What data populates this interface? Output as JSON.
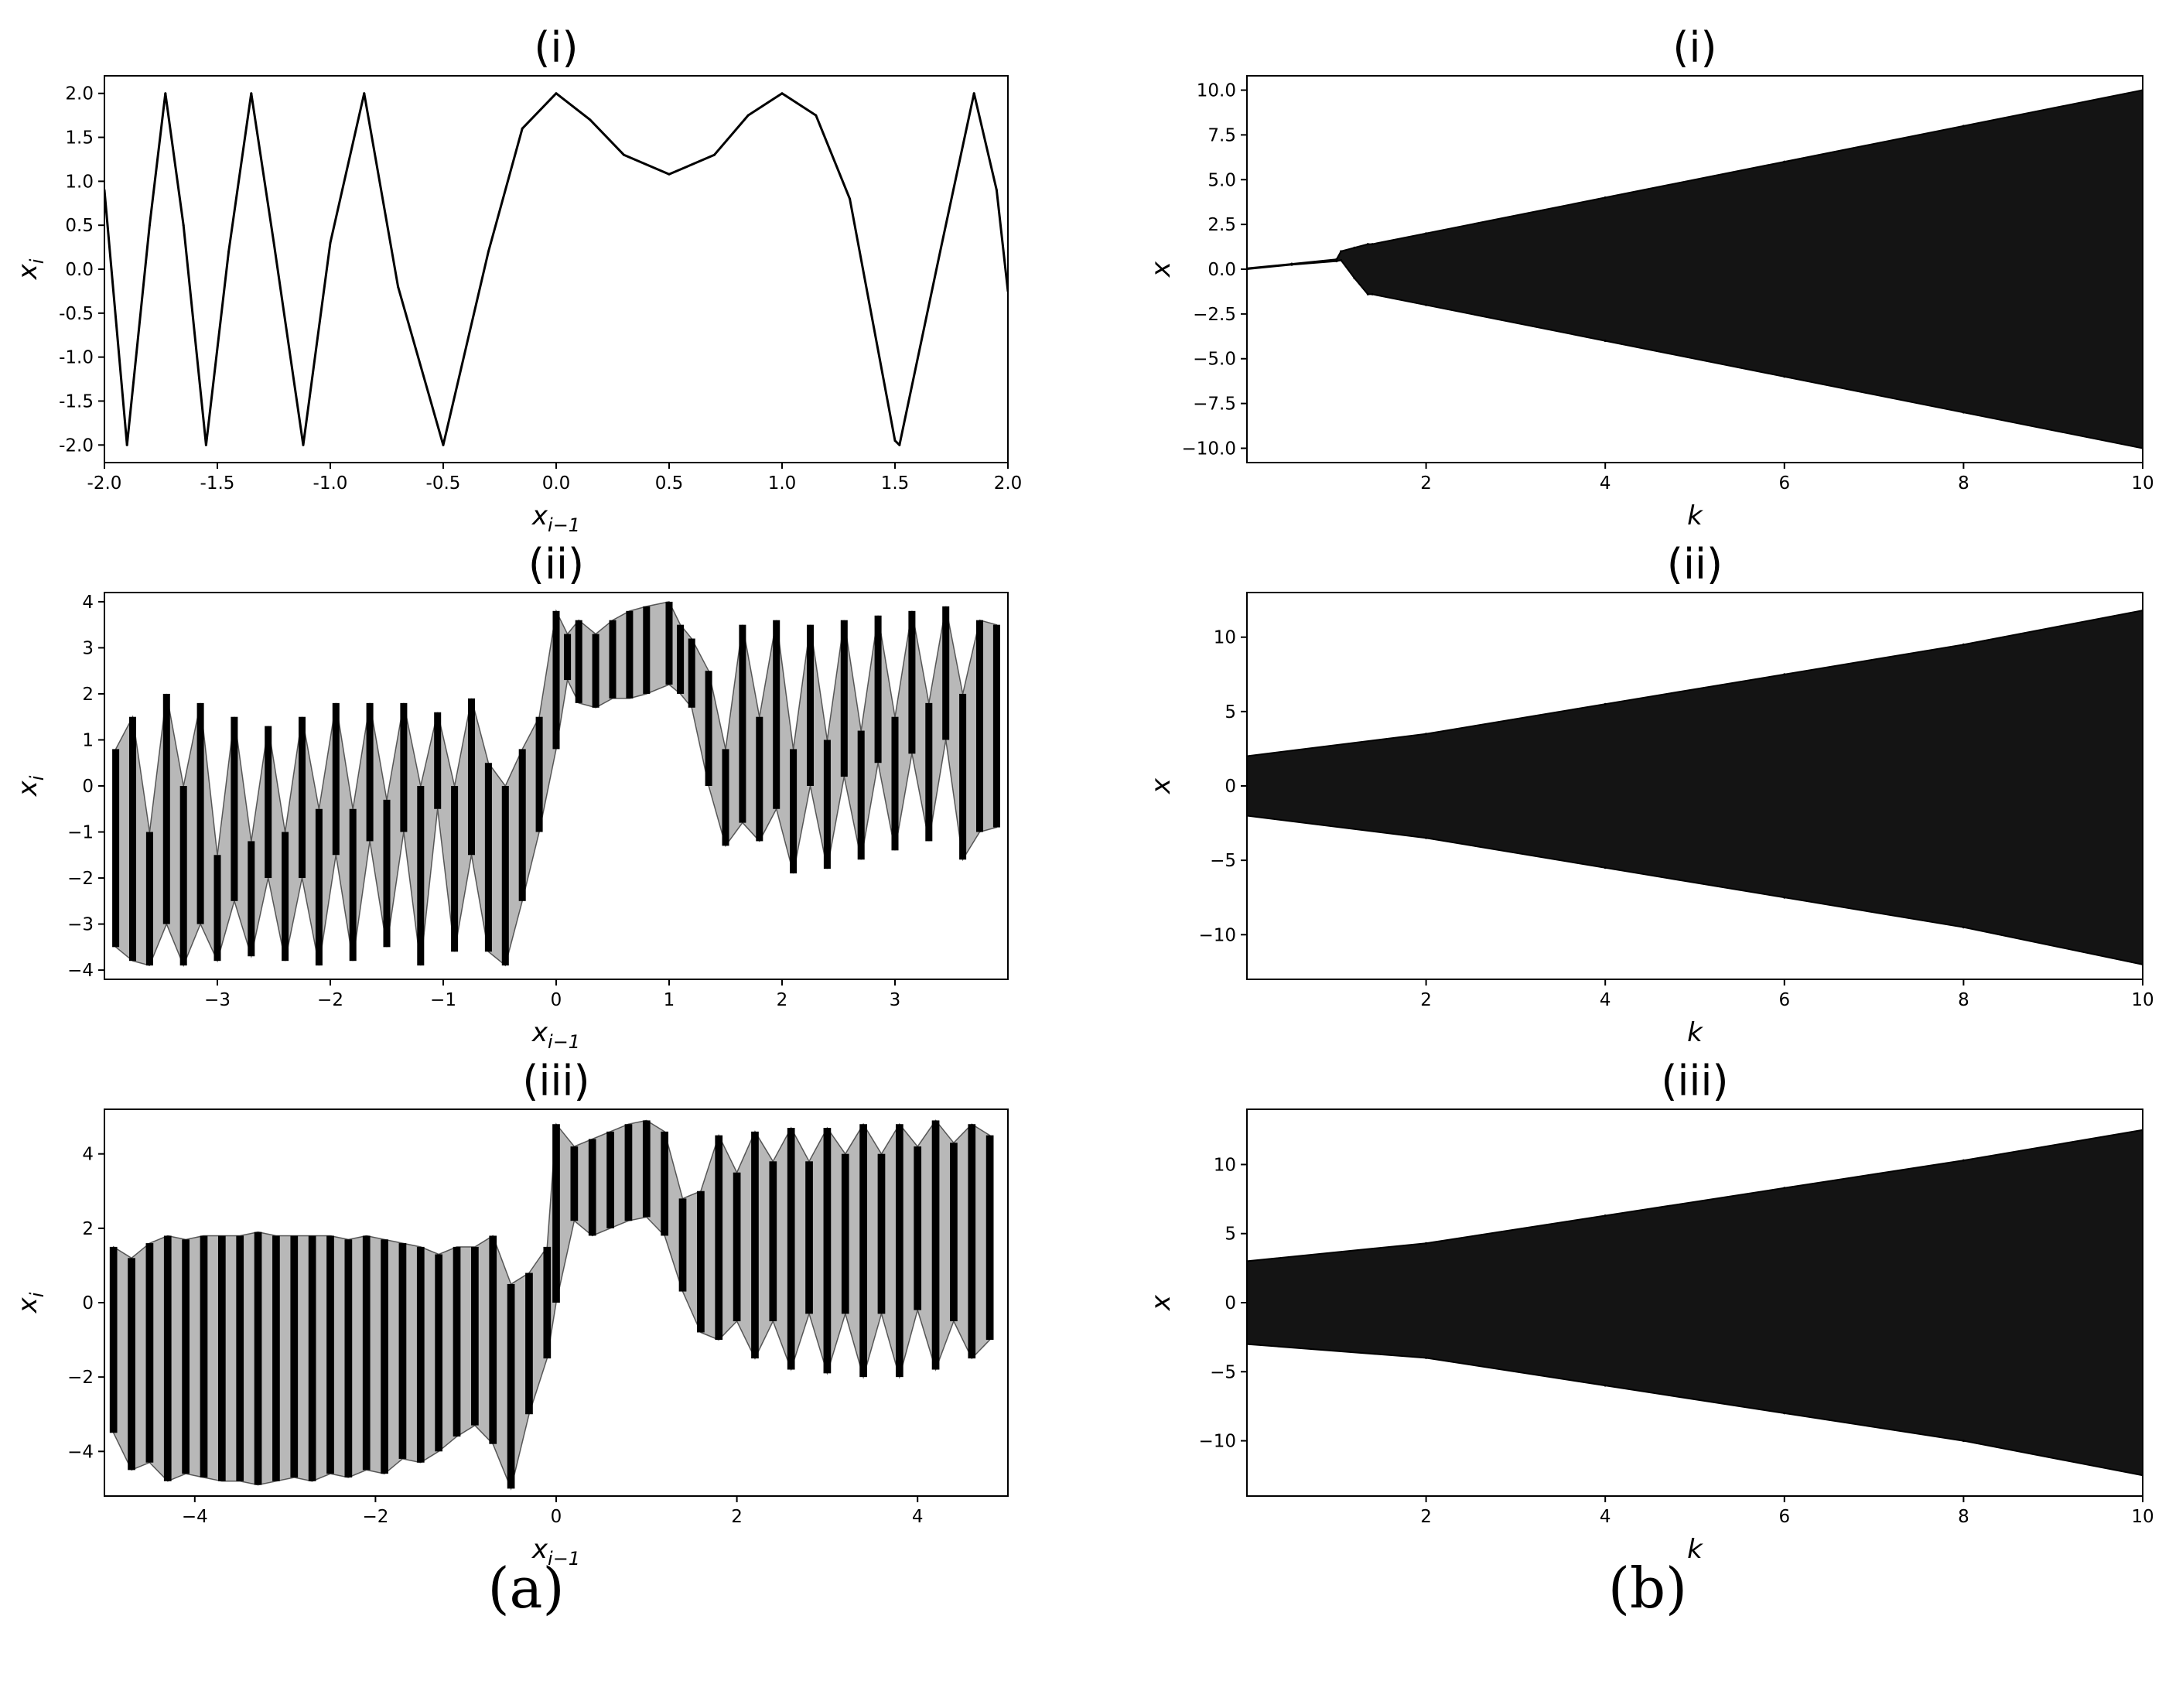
{
  "figure": {
    "panel_a_label": "(a)",
    "panel_b_label": "(b)"
  },
  "chart_data": [
    {
      "id": "a1",
      "type": "line",
      "title": "(i)",
      "xlabel": "x_{i-1}",
      "ylabel": "x_i",
      "xlim": [
        -2.0,
        2.0
      ],
      "ylim": [
        -2.2,
        2.2
      ],
      "xticks": [
        "-2.0",
        "-1.5",
        "-1.0",
        "-0.5",
        "0.0",
        "0.5",
        "1.0",
        "1.5",
        "2.0"
      ],
      "yticks": [
        "-2.0",
        "-1.5",
        "-1.0",
        "-0.5",
        "0.0",
        "0.5",
        "1.0",
        "1.5",
        "2.0"
      ],
      "color": "#000000",
      "x": [
        -2.0,
        -1.9,
        -1.8,
        -1.73,
        -1.65,
        -1.55,
        -1.45,
        -1.35,
        -1.25,
        -1.12,
        -1.0,
        -0.85,
        -0.7,
        -0.5,
        -0.3,
        -0.15,
        0.0,
        0.15,
        0.3,
        0.5,
        0.7,
        0.85,
        1.0,
        1.15,
        1.3,
        1.5,
        1.52,
        1.7,
        1.85,
        1.95,
        2.0
      ],
      "y": [
        0.9,
        -2.0,
        0.5,
        2.0,
        0.5,
        -2.0,
        0.2,
        2.0,
        0.3,
        -2.0,
        0.3,
        2.0,
        -0.2,
        -2.0,
        0.2,
        1.6,
        2.0,
        1.7,
        1.3,
        1.08,
        1.3,
        1.75,
        2.0,
        1.75,
        0.8,
        -1.95,
        -2.0,
        0.2,
        2.0,
        0.9,
        -0.25
      ]
    },
    {
      "id": "a2",
      "type": "scatter",
      "title": "(ii)",
      "xlabel": "x_{i-1}",
      "ylabel": "x_i",
      "xlim": [
        -4.0,
        4.0
      ],
      "ylim": [
        -4.2,
        4.2
      ],
      "xticks": [
        "−3",
        "−2",
        "−1",
        "0",
        "1",
        "2",
        "3"
      ],
      "yticks": [
        "−4",
        "−3",
        "−2",
        "−1",
        "0",
        "1",
        "2",
        "3",
        "4"
      ],
      "color": "#000000",
      "x": [
        -3.9,
        -3.75,
        -3.6,
        -3.45,
        -3.3,
        -3.15,
        -3.0,
        -2.85,
        -2.7,
        -2.55,
        -2.4,
        -2.25,
        -2.1,
        -1.95,
        -1.8,
        -1.65,
        -1.5,
        -1.35,
        -1.2,
        -1.05,
        -0.9,
        -0.75,
        -0.6,
        -0.45,
        -0.3,
        -0.15,
        0.0,
        0.1,
        0.2,
        0.35,
        0.5,
        0.65,
        0.8,
        1.0,
        1.1,
        1.2,
        1.35,
        1.5,
        1.65,
        1.8,
        1.95,
        2.1,
        2.25,
        2.4,
        2.55,
        2.7,
        2.85,
        3.0,
        3.15,
        3.3,
        3.45,
        3.6,
        3.75,
        3.9
      ],
      "y_low": [
        -3.5,
        -3.8,
        -3.9,
        -3.0,
        -3.9,
        -3.0,
        -3.8,
        -2.5,
        -3.7,
        -2.0,
        -3.8,
        -2.0,
        -3.9,
        -1.5,
        -3.8,
        -1.2,
        -3.5,
        -1.0,
        -3.9,
        -0.5,
        -3.6,
        -1.5,
        -3.6,
        -3.9,
        -2.5,
        -1.0,
        0.8,
        2.3,
        1.8,
        1.7,
        1.9,
        1.9,
        2.0,
        2.2,
        2.0,
        1.7,
        0.0,
        -1.3,
        -0.8,
        -1.2,
        -0.5,
        -1.9,
        0.0,
        -1.8,
        0.2,
        -1.6,
        0.5,
        -1.4,
        0.7,
        -1.2,
        1.0,
        -1.6,
        -1.0,
        -0.9
      ],
      "y_high": [
        0.8,
        1.5,
        -1.0,
        2.0,
        0.0,
        1.8,
        -1.5,
        1.5,
        -1.2,
        1.3,
        -1.0,
        1.5,
        -0.5,
        1.8,
        -0.5,
        1.8,
        -0.3,
        1.8,
        0.0,
        1.6,
        0.0,
        1.9,
        0.5,
        0.0,
        0.8,
        1.5,
        3.8,
        3.3,
        3.6,
        3.3,
        3.6,
        3.8,
        3.9,
        4.0,
        3.5,
        3.2,
        2.5,
        0.8,
        3.5,
        1.5,
        3.6,
        0.8,
        3.5,
        1.0,
        3.6,
        1.2,
        3.7,
        1.5,
        3.8,
        1.8,
        3.9,
        2.0,
        3.6,
        3.5
      ]
    },
    {
      "id": "a3",
      "type": "scatter",
      "title": "(iii)",
      "xlabel": "x_{i-1}",
      "ylabel": "x_i",
      "xlim": [
        -5.0,
        5.0
      ],
      "ylim": [
        -5.2,
        5.2
      ],
      "xticks": [
        "−4",
        "−2",
        "0",
        "2",
        "4"
      ],
      "yticks": [
        "−4",
        "−2",
        "0",
        "2",
        "4"
      ],
      "color": "#000000",
      "x": [
        -4.9,
        -4.7,
        -4.5,
        -4.3,
        -4.1,
        -3.9,
        -3.7,
        -3.5,
        -3.3,
        -3.1,
        -2.9,
        -2.7,
        -2.5,
        -2.3,
        -2.1,
        -1.9,
        -1.7,
        -1.5,
        -1.3,
        -1.1,
        -0.9,
        -0.7,
        -0.5,
        -0.3,
        -0.1,
        0.0,
        0.2,
        0.4,
        0.6,
        0.8,
        1.0,
        1.2,
        1.4,
        1.6,
        1.8,
        2.0,
        2.2,
        2.4,
        2.6,
        2.8,
        3.0,
        3.2,
        3.4,
        3.6,
        3.8,
        4.0,
        4.2,
        4.4,
        4.6,
        4.8
      ],
      "y_low": [
        -3.5,
        -4.5,
        -4.3,
        -4.8,
        -4.6,
        -4.7,
        -4.8,
        -4.8,
        -4.9,
        -4.8,
        -4.7,
        -4.8,
        -4.6,
        -4.7,
        -4.5,
        -4.6,
        -4.2,
        -4.3,
        -4.0,
        -3.6,
        -3.3,
        -3.8,
        -5.0,
        -3.0,
        -1.5,
        0.0,
        2.2,
        1.8,
        2.0,
        2.2,
        2.3,
        1.8,
        0.3,
        -0.8,
        -1.0,
        -0.5,
        -1.5,
        -0.5,
        -1.8,
        -0.3,
        -1.9,
        -0.3,
        -2.0,
        -0.3,
        -2.0,
        -0.2,
        -1.8,
        -0.5,
        -1.5,
        -1.0
      ],
      "y_high": [
        1.5,
        1.2,
        1.6,
        1.8,
        1.7,
        1.8,
        1.8,
        1.8,
        1.9,
        1.8,
        1.8,
        1.8,
        1.8,
        1.7,
        1.8,
        1.7,
        1.6,
        1.5,
        1.3,
        1.5,
        1.5,
        1.8,
        0.5,
        0.8,
        1.5,
        4.8,
        4.2,
        4.4,
        4.6,
        4.8,
        4.9,
        4.6,
        2.8,
        3.0,
        4.5,
        3.5,
        4.6,
        3.8,
        4.7,
        3.8,
        4.7,
        4.0,
        4.8,
        4.0,
        4.8,
        4.2,
        4.9,
        4.3,
        4.8,
        4.5
      ]
    },
    {
      "id": "b1",
      "type": "area",
      "title": "(i)",
      "xlabel": "k",
      "ylabel": "x",
      "xlim": [
        0.0,
        10.0
      ],
      "ylim": [
        -10.8,
        10.8
      ],
      "xticks": [
        "2",
        "4",
        "6",
        "8",
        "10"
      ],
      "yticks": [
        "−10.0",
        "−7.5",
        "−5.0",
        "−2.5",
        "0.0",
        "2.5",
        "5.0",
        "7.5",
        "10.0"
      ],
      "color": "#000000",
      "x": [
        0.0,
        0.5,
        1.0,
        1.05,
        1.2,
        1.35,
        1.4,
        2.0,
        4.0,
        6.0,
        8.0,
        10.0
      ],
      "y_low": [
        0.0,
        0.25,
        0.45,
        0.5,
        -0.5,
        -1.4,
        -1.4,
        -2.0,
        -4.0,
        -6.0,
        -8.0,
        -10.0
      ],
      "y_high": [
        0.05,
        0.3,
        0.55,
        1.0,
        1.2,
        1.4,
        1.4,
        2.0,
        4.0,
        6.0,
        8.0,
        10.0
      ]
    },
    {
      "id": "b2",
      "type": "area",
      "title": "(ii)",
      "xlabel": "k",
      "ylabel": "x",
      "xlim": [
        0.0,
        10.0
      ],
      "ylim": [
        -13.0,
        13.0
      ],
      "xticks": [
        "2",
        "4",
        "6",
        "8",
        "10"
      ],
      "yticks": [
        "−10",
        "−5",
        "0",
        "5",
        "10"
      ],
      "color": "#000000",
      "x": [
        0.0,
        2.0,
        4.0,
        6.0,
        8.0,
        10.0
      ],
      "y_low": [
        -2.0,
        -3.5,
        -5.5,
        -7.5,
        -9.5,
        -12.0
      ],
      "y_high": [
        2.0,
        3.5,
        5.5,
        7.5,
        9.5,
        11.8
      ]
    },
    {
      "id": "b3",
      "type": "area",
      "title": "(iii)",
      "xlabel": "k",
      "ylabel": "x",
      "xlim": [
        0.0,
        10.0
      ],
      "ylim": [
        -14.0,
        14.0
      ],
      "xticks": [
        "2",
        "4",
        "6",
        "8",
        "10"
      ],
      "yticks": [
        "−10",
        "−5",
        "0",
        "5",
        "10"
      ],
      "color": "#000000",
      "x": [
        0.0,
        2.0,
        4.0,
        6.0,
        8.0,
        10.0
      ],
      "y_low": [
        -3.0,
        -4.0,
        -6.0,
        -8.0,
        -10.0,
        -12.5
      ],
      "y_high": [
        3.0,
        4.3,
        6.3,
        8.3,
        10.3,
        12.5
      ]
    }
  ]
}
